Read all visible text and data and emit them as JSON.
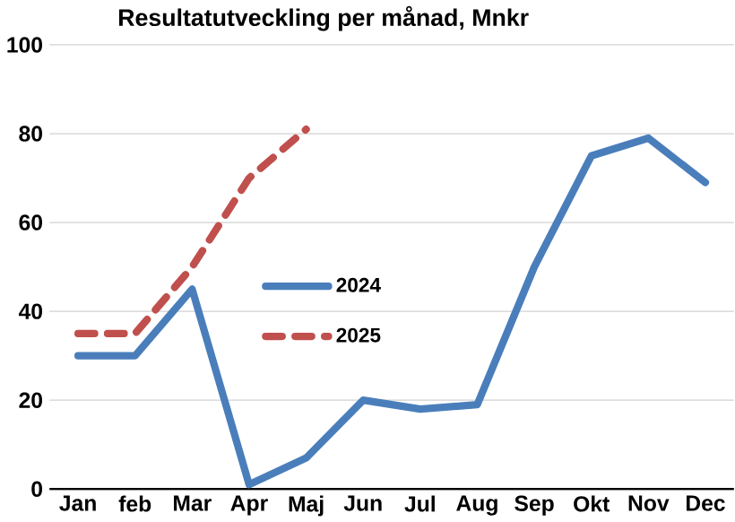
{
  "chart_data": {
    "type": "line",
    "title": "Resultatutveckling per månad, Mnkr",
    "categories": [
      "Jan",
      "feb",
      "Mar",
      "Apr",
      "Maj",
      "Jun",
      "Jul",
      "Aug",
      "Sep",
      "Okt",
      "Nov",
      "Dec"
    ],
    "series": [
      {
        "name": "2024",
        "color": "#4a7ebb",
        "line_style": "solid",
        "values": [
          30,
          30,
          45,
          1,
          7,
          20,
          18,
          19,
          50,
          75,
          79,
          69
        ]
      },
      {
        "name": "2025",
        "color": "#c0504d",
        "line_style": "dashed",
        "values": [
          35,
          35,
          50,
          70,
          81,
          null,
          null,
          null,
          null,
          null,
          null,
          null
        ]
      }
    ],
    "ylim": [
      0,
      100
    ],
    "yticks": [
      0,
      20,
      40,
      60,
      80,
      100
    ],
    "grid": "y",
    "legend": "center",
    "marker": "none"
  }
}
